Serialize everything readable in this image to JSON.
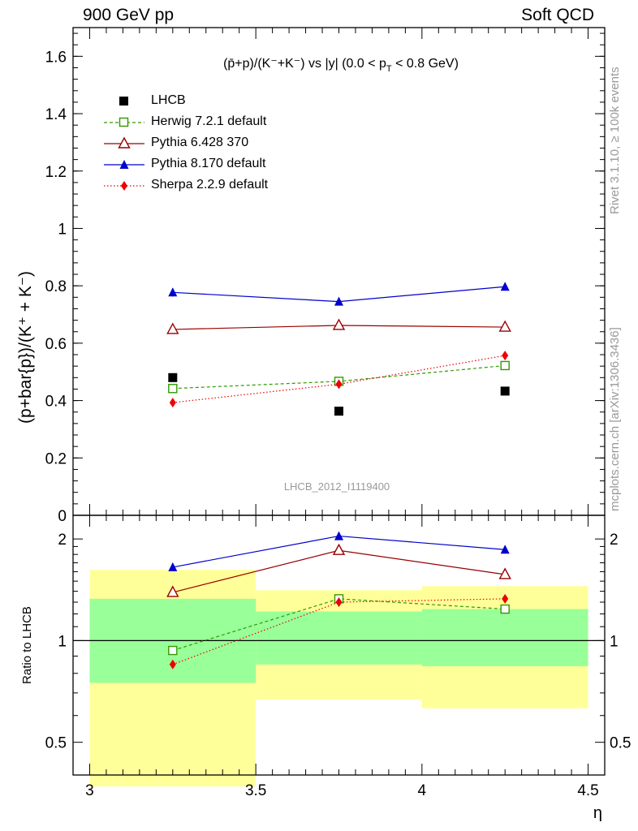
{
  "header": {
    "left": "900 GeV pp",
    "right": "Soft QCD"
  },
  "side_text": {
    "top": "Rivet 3.1.10, ≥ 100k events",
    "bottom": "mcplots.cern.ch [arXiv:1306.3436]"
  },
  "watermark": "LHCB_2012_I1119400",
  "colors": {
    "data": "#000000",
    "herwig": "#339900",
    "pythia6": "#990000",
    "pythia8": "#0000cc",
    "sherpa": "#ee0000",
    "band_outer": "#ffff99",
    "band_inner": "#99ff99"
  },
  "chart_data": [
    {
      "type": "line",
      "panel": "main",
      "title": "(p̄+p)/(K⁻+K⁻) vs |y| (0.0 < p",
      "title_sub": "T",
      "title_tail": " < 0.8 GeV)",
      "ylabel": "(p+bar{p})/(K⁺ + K⁻)",
      "xlim": [
        2.95,
        4.55
      ],
      "ylim": [
        0,
        1.7
      ],
      "yticks": [
        0,
        0.2,
        0.4,
        0.6,
        0.8,
        1.0,
        1.2,
        1.4,
        1.6
      ],
      "ytick_labels": [
        "0",
        "0.2",
        "0.4",
        "0.6",
        "0.8",
        "1",
        "1.2",
        "1.4",
        "1.6"
      ],
      "x": [
        3.25,
        3.75,
        4.25
      ],
      "series": [
        {
          "name": "LHCB",
          "key": "data",
          "marker": "square",
          "values": [
            0.48,
            0.363,
            0.433
          ]
        },
        {
          "name": "Herwig 7.2.1 default",
          "key": "herwig",
          "marker": "open-square",
          "line": "dashed",
          "values": [
            0.442,
            0.467,
            0.522
          ]
        },
        {
          "name": "Pythia 6.428 370",
          "key": "pythia6",
          "marker": "open-triangle",
          "line": "solid",
          "values": [
            0.648,
            0.662,
            0.656
          ]
        },
        {
          "name": "Pythia 8.170 default",
          "key": "pythia8",
          "marker": "triangle",
          "line": "solid",
          "values": [
            0.777,
            0.745,
            0.797
          ],
          "errors": [
            0.014,
            0.012,
            0.012
          ]
        },
        {
          "name": "Sherpa 2.2.9 default",
          "key": "sherpa",
          "marker": "diamond",
          "line": "dotted",
          "values": [
            0.393,
            0.457,
            0.557
          ]
        }
      ]
    },
    {
      "type": "line",
      "panel": "ratio",
      "ylabel": "Ratio to LHCB",
      "xlabel": "η",
      "xlim": [
        2.95,
        4.55
      ],
      "ylim": [
        0.4,
        2.35
      ],
      "yscale": "log",
      "xticks": [
        3.0,
        3.5,
        4.0,
        4.5
      ],
      "xtick_labels": [
        "3",
        "3.5",
        "4",
        "4.5"
      ],
      "yticks": [
        0.5,
        1,
        2
      ],
      "ytick_labels": [
        "0.5",
        "1",
        "2"
      ],
      "x": [
        3.25,
        3.75,
        4.25
      ],
      "bands": [
        {
          "x_low": 3.0,
          "x_high": 3.5,
          "outer": [
            0.37,
            1.62
          ],
          "inner": [
            0.75,
            1.33
          ]
        },
        {
          "x_low": 3.5,
          "x_high": 4.0,
          "outer": [
            0.67,
            1.41
          ],
          "inner": [
            0.85,
            1.22
          ]
        },
        {
          "x_low": 4.0,
          "x_high": 4.5,
          "outer": [
            0.63,
            1.45
          ],
          "inner": [
            0.84,
            1.24
          ]
        }
      ],
      "series": [
        {
          "name": "Herwig 7.2.1 default",
          "key": "herwig",
          "marker": "open-square",
          "line": "dashed",
          "values": [
            0.935,
            1.33,
            1.24
          ]
        },
        {
          "name": "Pythia 6.428 370",
          "key": "pythia6",
          "marker": "open-triangle",
          "line": "solid",
          "values": [
            1.39,
            1.85,
            1.57
          ]
        },
        {
          "name": "Pythia 8.170 default",
          "key": "pythia8",
          "marker": "triangle",
          "line": "solid",
          "values": [
            1.65,
            2.04,
            1.86
          ]
        },
        {
          "name": "Sherpa 2.2.9 default",
          "key": "sherpa",
          "marker": "diamond",
          "line": "dotted",
          "values": [
            0.85,
            1.3,
            1.33
          ]
        }
      ]
    }
  ]
}
